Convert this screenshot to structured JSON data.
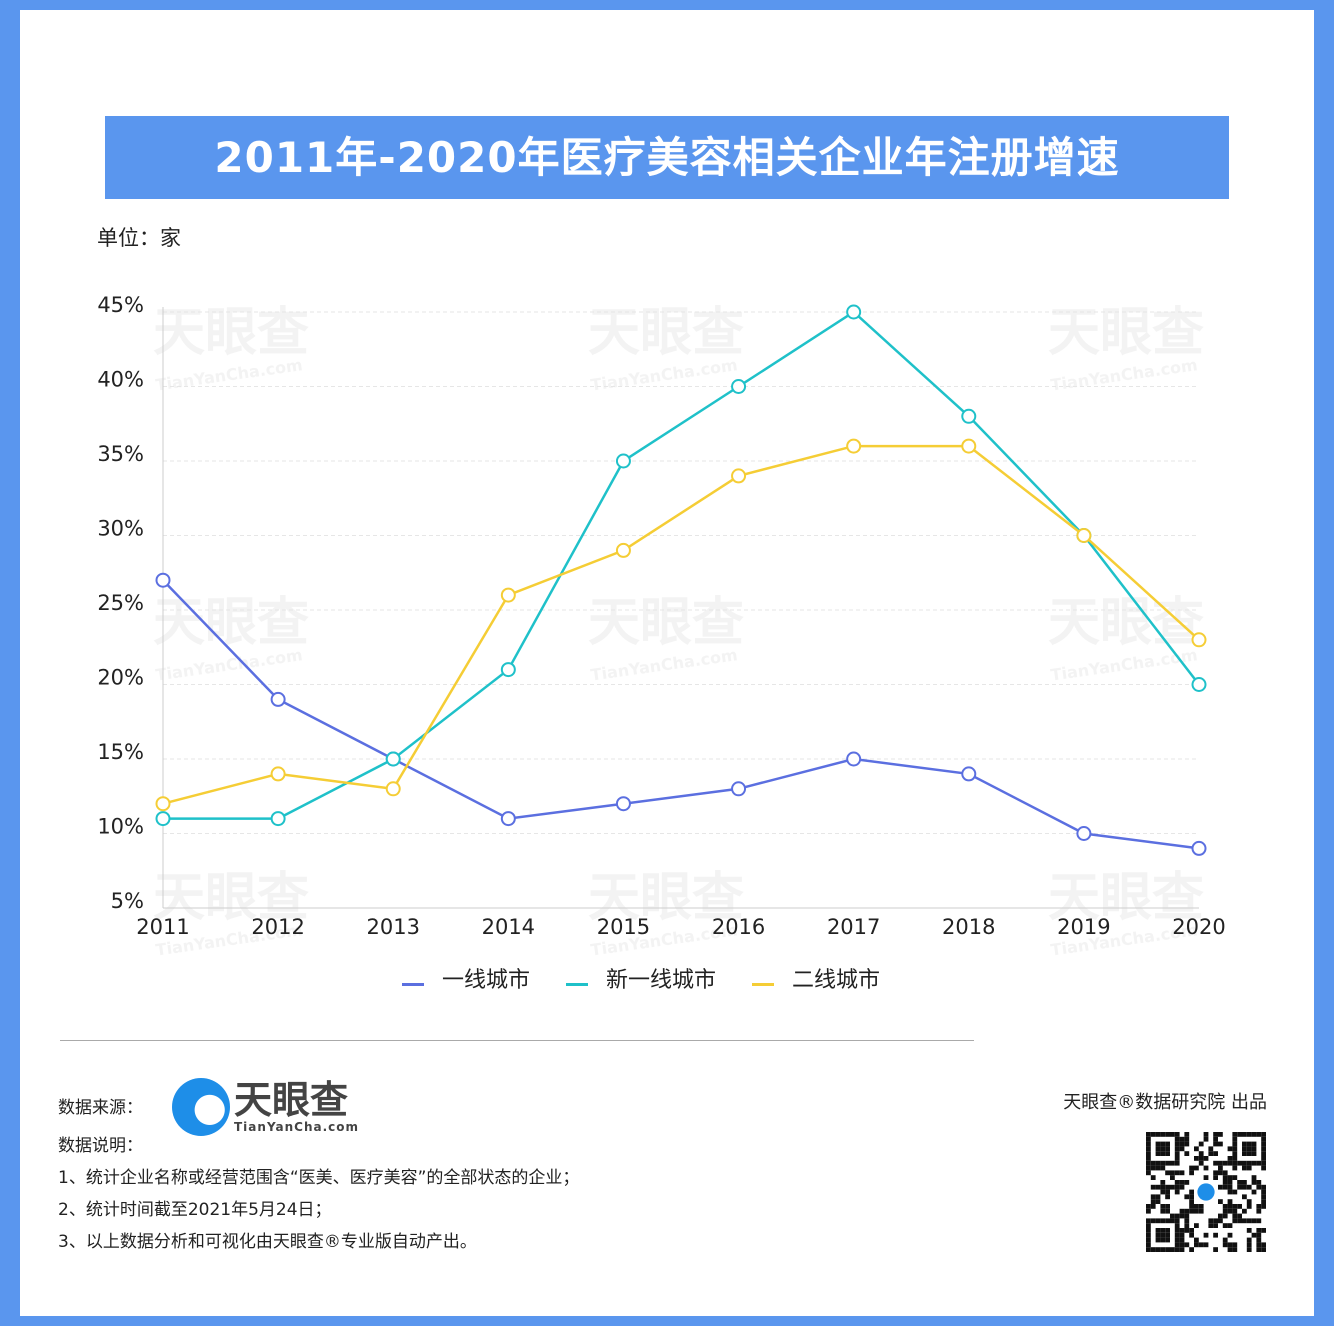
{
  "title": "2011年-2020年医疗美容相关企业年注册增速",
  "unit": "单位：家",
  "chart_data": {
    "type": "line",
    "title": "2011年-2020年医疗美容相关企业年注册增速",
    "categories": [
      "2011",
      "2012",
      "2013",
      "2014",
      "2015",
      "2016",
      "2017",
      "2018",
      "2019",
      "2020"
    ],
    "yticks": [
      "5%",
      "10%",
      "15%",
      "20%",
      "25%",
      "30%",
      "35%",
      "40%",
      "45%"
    ],
    "ylim": [
      5,
      45
    ],
    "grid": true,
    "legend_position": "bottom",
    "series": [
      {
        "name": "一线城市",
        "color": "#5b6fe0",
        "values": [
          27,
          19,
          15,
          11,
          12,
          13,
          15,
          14,
          10,
          9
        ]
      },
      {
        "name": "新一线城市",
        "color": "#1fc1c9",
        "values": [
          11,
          11,
          15,
          21,
          35,
          40,
          45,
          38,
          30,
          20
        ]
      },
      {
        "name": "二线城市",
        "color": "#f5cd35",
        "values": [
          12,
          14,
          13,
          26,
          29,
          34,
          36,
          36,
          30,
          23
        ]
      }
    ]
  },
  "footer": {
    "source_label": "数据来源：",
    "logo_cn": "天眼查",
    "logo_en": "TianYanCha.com",
    "notes_label": "数据说明：",
    "notes": [
      "1、统计企业名称或经营范围含“医美、医疗美容”的全部状态的企业；",
      "2、统计时间截至2021年5月24日；",
      "3、以上数据分析和可视化由天眼查®专业版自动产出。"
    ],
    "producer": "天眼查®数据研究院 出品"
  },
  "watermark": {
    "cn": "天眼查",
    "en": "TianYanCha.com"
  }
}
